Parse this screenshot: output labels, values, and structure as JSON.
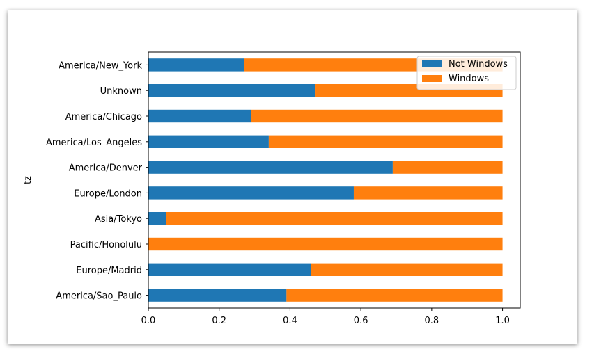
{
  "chart_data": {
    "type": "bar",
    "orientation": "horizontal",
    "stacked": true,
    "ylabel": "tz",
    "xlabel": "",
    "xlim": [
      0.0,
      1.05
    ],
    "xticks": [
      "0.0",
      "0.2",
      "0.4",
      "0.6",
      "0.8",
      "1.0"
    ],
    "grid": false,
    "legend_position": "top-right",
    "categories": [
      "America/New_York",
      "Unknown",
      "America/Chicago",
      "America/Los_Angeles",
      "America/Denver",
      "Europe/London",
      "Asia/Tokyo",
      "Pacific/Honolulu",
      "Europe/Madrid",
      "America/Sao_Paulo"
    ],
    "series": [
      {
        "name": "Not Windows",
        "color": "#1f77b4",
        "values": [
          0.27,
          0.47,
          0.29,
          0.34,
          0.69,
          0.58,
          0.05,
          0.0,
          0.46,
          0.39
        ]
      },
      {
        "name": "Windows",
        "color": "#ff7f0e",
        "values": [
          0.73,
          0.53,
          0.71,
          0.66,
          0.31,
          0.42,
          0.95,
          1.0,
          0.54,
          0.61
        ]
      }
    ]
  }
}
